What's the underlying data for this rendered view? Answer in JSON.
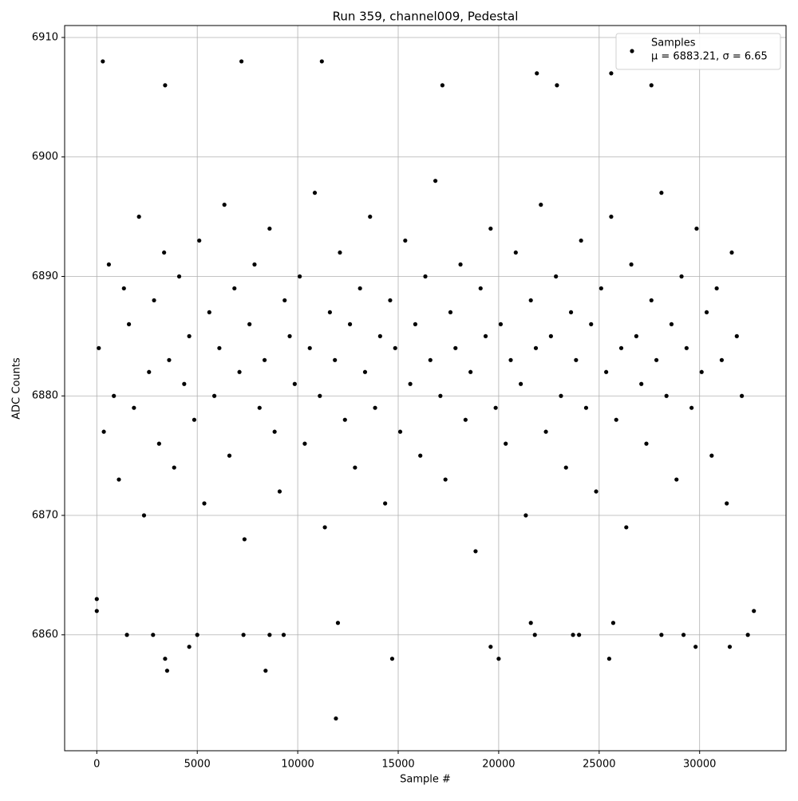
{
  "chart_data": {
    "type": "scatter",
    "title": "Run 359, channel009, Pedestal",
    "x_label": "Sample #",
    "y_label": "ADC Counts",
    "xlim": [
      -1600,
      34300
    ],
    "ylim": [
      6850.3,
      6911
    ],
    "xticks": [
      0,
      5000,
      10000,
      15000,
      20000,
      25000,
      30000
    ],
    "yticks": [
      6860,
      6870,
      6880,
      6890,
      6900,
      6910
    ],
    "grid": true,
    "legend": "upper right",
    "x": [
      100,
      350,
      600,
      850,
      1100,
      1350,
      1600,
      1850,
      2100,
      2350,
      2600,
      2850,
      3100,
      3350,
      3600,
      3850,
      4100,
      4350,
      4600,
      4850,
      5100,
      5350,
      5600,
      5850,
      6100,
      6350,
      6600,
      6850,
      7100,
      7350,
      7600,
      7850,
      8100,
      8350,
      8600,
      8850,
      9100,
      9350,
      9600,
      9850,
      10100,
      10350,
      10600,
      10850,
      11100,
      11350,
      11600,
      11850,
      12100,
      12350,
      12600,
      12850,
      13100,
      13350,
      13600,
      13850,
      14100,
      14350,
      14600,
      14850,
      15100,
      15350,
      15600,
      15850,
      16100,
      16350,
      16600,
      16850,
      17100,
      17350,
      17600,
      17850,
      18100,
      18350,
      18600,
      18850,
      19100,
      19350,
      19600,
      19850,
      20100,
      20350,
      20600,
      20850,
      21100,
      21350,
      21600,
      21850,
      22100,
      22350,
      22600,
      22850,
      23100,
      23350,
      23600,
      23850,
      24100,
      24350,
      24600,
      24850,
      25100,
      25350,
      25600,
      25850,
      26100,
      26350,
      26600,
      26850,
      27100,
      27350,
      27600,
      27850,
      28100,
      28350,
      28600,
      28850,
      29100,
      29350,
      29600,
      29850,
      30100,
      30350,
      30600,
      30850,
      31100,
      31350,
      31600,
      31850,
      32100,
      300,
      7200,
      11200,
      21900,
      25600,
      3400,
      17200,
      22900,
      27600,
      11900,
      3500,
      8400,
      3400,
      14700,
      20000,
      25500,
      19600,
      4600,
      29800,
      31500,
      1500,
      2800,
      5000,
      7300,
      8600,
      9300,
      21800,
      23700,
      24000,
      28100,
      29200,
      32400,
      12000,
      21600,
      25700,
      0,
      32700,
      0
    ],
    "series": [
      {
        "name": "Samples",
        "label": "μ = 6883.21, σ = 6.65",
        "color": "#000000",
        "values": [
          6884,
          6877,
          6891,
          6880,
          6873,
          6889,
          6886,
          6879,
          6895,
          6870,
          6882,
          6888,
          6876,
          6892,
          6883,
          6874,
          6890,
          6881,
          6885,
          6878,
          6893,
          6871,
          6887,
          6880,
          6884,
          6896,
          6875,
          6889,
          6882,
          6868,
          6886,
          6891,
          6879,
          6883,
          6894,
          6877,
          6872,
          6888,
          6885,
          6881,
          6890,
          6876,
          6884,
          6897,
          6880,
          6869,
          6887,
          6883,
          6892,
          6878,
          6886,
          6874,
          6889,
          6882,
          6895,
          6879,
          6885,
          6871,
          6888,
          6884,
          6877,
          6893,
          6881,
          6886,
          6875,
          6890,
          6883,
          6898,
          6880,
          6873,
          6887,
          6884,
          6891,
          6878,
          6882,
          6867,
          6889,
          6885,
          6894,
          6879,
          6886,
          6876,
          6883,
          6892,
          6881,
          6870,
          6888,
          6884,
          6896,
          6877,
          6885,
          6890,
          6880,
          6874,
          6887,
          6883,
          6893,
          6879,
          6886,
          6872,
          6889,
          6882,
          6895,
          6878,
          6884,
          6869,
          6891,
          6885,
          6881,
          6876,
          6888,
          6883,
          6897,
          6880,
          6886,
          6873,
          6890,
          6884,
          6879,
          6894,
          6882,
          6887,
          6875,
          6889,
          6883,
          6871,
          6892,
          6885,
          6880,
          6908,
          6908,
          6908,
          6907,
          6907,
          6906,
          6906,
          6906,
          6906,
          6853,
          6857,
          6857,
          6858,
          6858,
          6858,
          6858,
          6859,
          6859,
          6859,
          6859,
          6860,
          6860,
          6860,
          6860,
          6860,
          6860,
          6860,
          6860,
          6860,
          6860,
          6860,
          6860,
          6861,
          6861,
          6861,
          6862,
          6862,
          6863
        ]
      }
    ]
  }
}
